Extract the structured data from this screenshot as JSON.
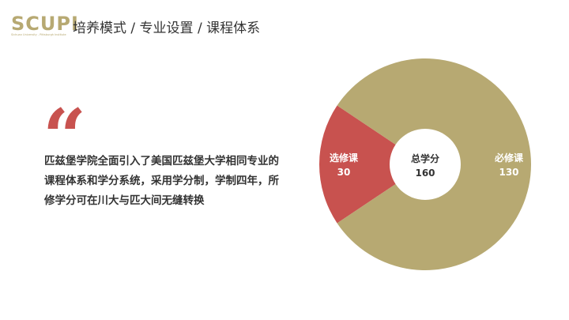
{
  "header": {
    "logo_text": "SCUPI",
    "logo_subtitle": "Sichuan University - Pittsburgh Institute",
    "title": "培养模式 / 专业设置 / 课程体系"
  },
  "quote_mark": "“",
  "description": "匹兹堡学院全面引入了美国匹兹堡大学相同专业的课程体系和学分系统，采用学分制，学制四年，所修学分可在川大与匹大间无缝转换",
  "chart_data": {
    "type": "pie",
    "donut": true,
    "center_label": {
      "title": "总学分",
      "value": 160
    },
    "slices": [
      {
        "name": "选修课",
        "value": 30,
        "color": "#c8524f",
        "label_color": "#ffffff"
      },
      {
        "name": "必修课",
        "value": 130,
        "color": "#b7a972",
        "label_color": "#ffffff"
      }
    ]
  }
}
